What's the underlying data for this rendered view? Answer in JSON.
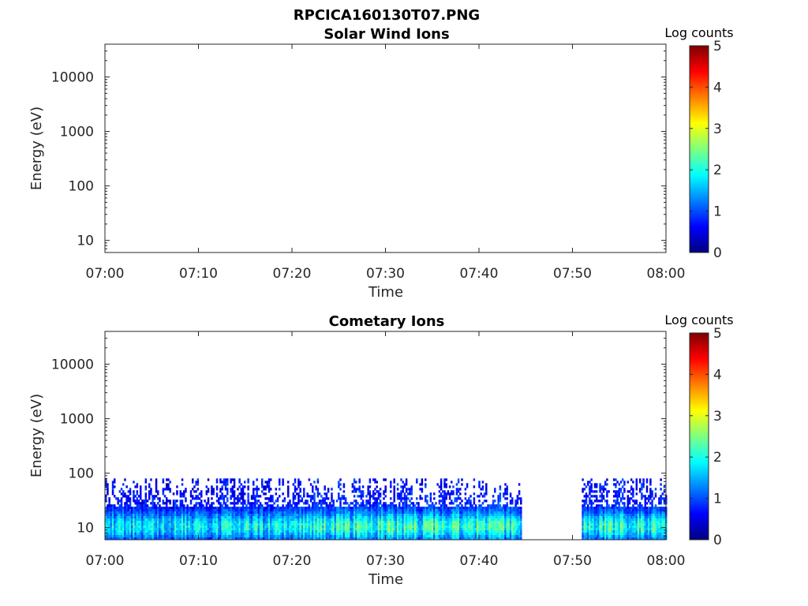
{
  "figure_title": "RPCICA160130T07.PNG",
  "colorbar": {
    "label": "Log counts",
    "ticks": [
      "0",
      "1",
      "2",
      "3",
      "4",
      "5"
    ],
    "range": [
      0,
      5
    ]
  },
  "chart_data": [
    {
      "type": "heatmap",
      "title": "Solar Wind Ions",
      "xlabel": "Time",
      "ylabel": "Energy (eV)",
      "x_ticks": [
        "07:00",
        "07:10",
        "07:20",
        "07:30",
        "07:40",
        "07:50",
        "08:00"
      ],
      "x_range_minutes": [
        0,
        60
      ],
      "y_ticks": [
        "10",
        "100",
        "1000",
        "10000"
      ],
      "y_scale": "log",
      "ylim": [
        6,
        40000
      ],
      "segments": []
    },
    {
      "type": "heatmap",
      "title": "Cometary Ions",
      "xlabel": "Time",
      "ylabel": "Energy (eV)",
      "x_ticks": [
        "07:00",
        "07:10",
        "07:20",
        "07:30",
        "07:40",
        "07:50",
        "08:00"
      ],
      "x_range_minutes": [
        0,
        60
      ],
      "y_ticks": [
        "10",
        "100",
        "1000",
        "10000"
      ],
      "y_scale": "log",
      "ylim": [
        6,
        40000
      ],
      "segments": [
        {
          "start_min": 0.0,
          "end_min": 21.0,
          "max_energy_ev": 80,
          "peak_log_counts": 2.3
        },
        {
          "start_min": 21.0,
          "end_min": 44.5,
          "max_energy_ev": 80,
          "peak_log_counts": 2.7
        },
        {
          "start_min": 51.0,
          "end_min": 60.0,
          "max_energy_ev": 80,
          "peak_log_counts": 2.6
        }
      ]
    }
  ]
}
